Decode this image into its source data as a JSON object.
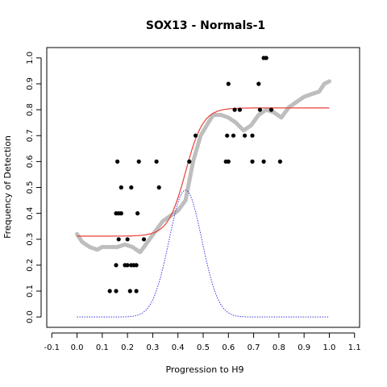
{
  "chart_data": {
    "type": "scatter",
    "title": "SOX13 - Normals-1",
    "xlabel": "Progression to H9",
    "ylabel": "Frequency of Detection",
    "xlim": [
      -0.12,
      1.12
    ],
    "ylim": [
      -0.04,
      1.04
    ],
    "x_ticks": [
      "-0.1",
      "0.0",
      "0.1",
      "0.2",
      "0.3",
      "0.4",
      "0.5",
      "0.6",
      "0.7",
      "0.8",
      "0.9",
      "1.0",
      "1.1"
    ],
    "y_ticks": [
      "0.0",
      "0.1",
      "0.2",
      "0.3",
      "0.4",
      "0.5",
      "0.6",
      "0.7",
      "0.8",
      "0.9",
      "1.0"
    ],
    "colors": {
      "points": "#000000",
      "smooth": "#bebebe",
      "fit": "#e8403a",
      "density": "#3a3adf"
    },
    "series": [
      {
        "type": "scatter",
        "points": [
          [
            0.13,
            0.1
          ],
          [
            0.155,
            0.1
          ],
          [
            0.21,
            0.1
          ],
          [
            0.235,
            0.1
          ],
          [
            0.155,
            0.2
          ],
          [
            0.19,
            0.2
          ],
          [
            0.2,
            0.2
          ],
          [
            0.215,
            0.2
          ],
          [
            0.225,
            0.2
          ],
          [
            0.235,
            0.2
          ],
          [
            0.165,
            0.3
          ],
          [
            0.2,
            0.3
          ],
          [
            0.265,
            0.3
          ],
          [
            0.155,
            0.4
          ],
          [
            0.165,
            0.4
          ],
          [
            0.175,
            0.4
          ],
          [
            0.24,
            0.4
          ],
          [
            0.175,
            0.5
          ],
          [
            0.215,
            0.5
          ],
          [
            0.325,
            0.5
          ],
          [
            0.16,
            0.6
          ],
          [
            0.245,
            0.6
          ],
          [
            0.315,
            0.6
          ],
          [
            0.445,
            0.6
          ],
          [
            0.47,
            0.7
          ],
          [
            0.595,
            0.7
          ],
          [
            0.62,
            0.7
          ],
          [
            0.665,
            0.7
          ],
          [
            0.695,
            0.7
          ],
          [
            0.59,
            0.6
          ],
          [
            0.6,
            0.6
          ],
          [
            0.695,
            0.6
          ],
          [
            0.74,
            0.6
          ],
          [
            0.805,
            0.6
          ],
          [
            0.625,
            0.8
          ],
          [
            0.645,
            0.8
          ],
          [
            0.725,
            0.8
          ],
          [
            0.77,
            0.8
          ],
          [
            0.6,
            0.9
          ],
          [
            0.72,
            0.9
          ],
          [
            0.74,
            1.0
          ],
          [
            0.75,
            1.0
          ]
        ]
      },
      {
        "type": "line",
        "x": [
          0.0,
          0.02,
          0.05,
          0.08,
          0.1,
          0.13,
          0.16,
          0.19,
          0.22,
          0.25,
          0.28,
          0.31,
          0.34,
          0.37,
          0.4,
          0.43,
          0.46,
          0.49,
          0.52,
          0.54,
          0.57,
          0.6,
          0.63,
          0.66,
          0.69,
          0.72,
          0.75,
          0.78,
          0.81,
          0.84,
          0.87,
          0.9,
          0.93,
          0.96,
          0.98,
          1.0
        ],
        "y": [
          0.32,
          0.29,
          0.27,
          0.26,
          0.27,
          0.27,
          0.27,
          0.28,
          0.27,
          0.25,
          0.29,
          0.33,
          0.37,
          0.39,
          0.41,
          0.45,
          0.6,
          0.7,
          0.75,
          0.78,
          0.78,
          0.77,
          0.75,
          0.72,
          0.74,
          0.78,
          0.8,
          0.79,
          0.77,
          0.81,
          0.83,
          0.85,
          0.86,
          0.87,
          0.9,
          0.91
        ]
      },
      {
        "type": "line",
        "model": "logistic",
        "lower": 0.312,
        "upper": 0.807,
        "midpoint": 0.43,
        "scale": 0.035
      },
      {
        "type": "line",
        "model": "gaussian",
        "mean": 0.43,
        "sd": 0.065,
        "peak": 0.49,
        "x_range": [
          0.0,
          1.0
        ]
      }
    ]
  }
}
